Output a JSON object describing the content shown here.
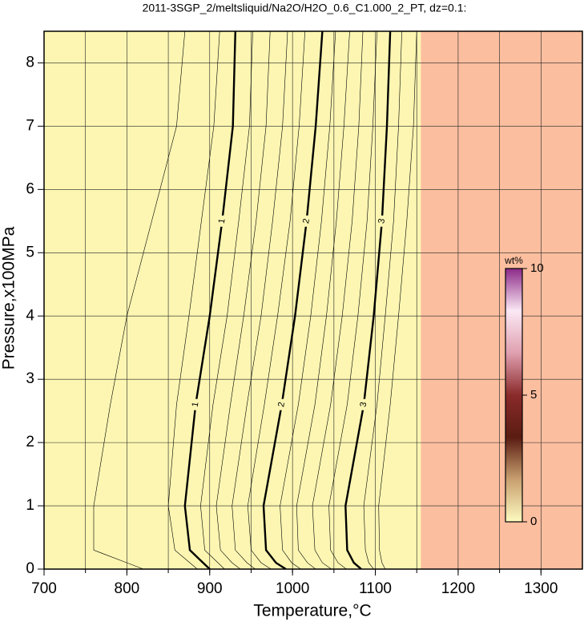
{
  "chart_data": {
    "type": "contour",
    "title": "2011-3SGP_2/meltsliquid/Na2O/H2O_0.6_C1.000_2_PT, dz=0.1:",
    "x_label": "Temperature,°C",
    "y_label": "Pressure,x100MPa",
    "xlim": [
      700,
      1350
    ],
    "ylim": [
      0,
      8.5
    ],
    "xticks": [
      700,
      800,
      900,
      1000,
      1100,
      1200,
      1300
    ],
    "yticks": [
      0,
      1,
      2,
      3,
      4,
      5,
      6,
      7,
      8
    ],
    "xgrid": [
      750,
      800,
      850,
      900,
      950,
      1000,
      1050,
      1100,
      1150,
      1200,
      1250,
      1300
    ],
    "grid": true,
    "regions": [
      {
        "color": "#fcf6b2",
        "xlim": [
          700,
          1155
        ]
      },
      {
        "color": "#fbbe9f",
        "xlim": [
          1155,
          1350
        ]
      }
    ],
    "pressures": [
      0,
      0.1,
      0.3,
      1,
      2.6,
      4,
      5.5,
      7,
      8.5
    ],
    "contours": [
      {
        "level": 0.5,
        "temps": [
          820,
          800,
          760,
          760,
          780,
          800,
          830,
          860,
          870
        ]
      },
      {
        "level": 0.8,
        "temps": [
          885,
          876,
          858,
          850,
          860,
          875,
          890,
          905,
          912
        ]
      },
      {
        "level": 1,
        "major": true,
        "temps": [
          900,
          892,
          876,
          870,
          883,
          900,
          915,
          928,
          931
        ]
      },
      {
        "level": 1.2,
        "temps": [
          918,
          910,
          894,
          889,
          904,
          921,
          935,
          948,
          952
        ]
      },
      {
        "level": 1.4,
        "temps": [
          937,
          927,
          913,
          908,
          925,
          941,
          956,
          968,
          973
        ]
      },
      {
        "level": 1.6,
        "temps": [
          955,
          945,
          931,
          927,
          945,
          962,
          976,
          988,
          994
        ]
      },
      {
        "level": 1.8,
        "temps": [
          974,
          962,
          950,
          946,
          966,
          982,
          997,
          1008,
          1015
        ]
      },
      {
        "level": 2,
        "major": true,
        "temps": [
          992,
          980,
          968,
          965,
          987,
          1003,
          1017,
          1028,
          1036
        ]
      },
      {
        "level": 2.2,
        "temps": [
          1010,
          999,
          988,
          985,
          1007,
          1022,
          1035,
          1045,
          1052
        ]
      },
      {
        "level": 2.4,
        "temps": [
          1028,
          1018,
          1007,
          1005,
          1027,
          1041,
          1053,
          1062,
          1069
        ]
      },
      {
        "level": 2.6,
        "temps": [
          1047,
          1036,
          1027,
          1024,
          1046,
          1060,
          1072,
          1080,
          1085
        ]
      },
      {
        "level": 2.8,
        "temps": [
          1065,
          1055,
          1046,
          1044,
          1066,
          1079,
          1090,
          1097,
          1102
        ]
      },
      {
        "level": 3,
        "major": true,
        "temps": [
          1083,
          1074,
          1066,
          1064,
          1086,
          1098,
          1108,
          1114,
          1118
        ]
      },
      {
        "level": 3.2,
        "temps": [
          1098,
          1092,
          1088,
          1086,
          1102,
          1112,
          1122,
          1128,
          1132
        ]
      },
      {
        "level": 3.4,
        "temps": [
          1112,
          1108,
          1105,
          1104,
          1118,
          1128,
          1138,
          1146,
          1150
        ]
      }
    ],
    "colorbar": {
      "label": "wt%",
      "lim": [
        0,
        10
      ],
      "ticks": [
        0,
        5,
        10
      ],
      "colors": [
        "#fdfbc0",
        "#c9a070",
        "#5a1c12",
        "#8a2a2a",
        "#e0a0b0",
        "#fbe8f4",
        "#8c2a88"
      ]
    }
  }
}
